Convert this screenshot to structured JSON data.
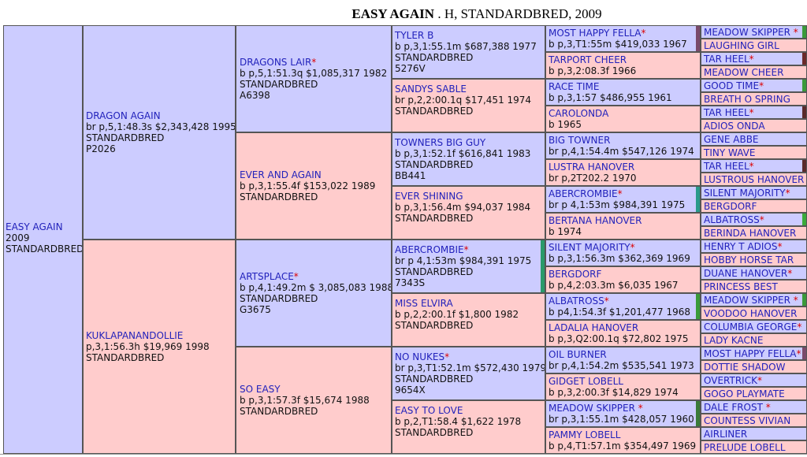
{
  "title": {
    "horse": "EASY AGAIN",
    "rest": " . H, STANDARDBRED, 2009"
  },
  "colors": {
    "male": "#ccccff",
    "female": "#ffcccc",
    "name": "#2222bb",
    "star": "#dd0000"
  },
  "gen1": {
    "name": "EASY AGAIN",
    "lines": [
      "2009",
      "STANDARDBRED"
    ]
  },
  "gen2": [
    {
      "name": "DRAGON AGAIN",
      "lines": [
        "br p,5,1:48.3s $2,343,428 1995",
        "STANDARDBRED",
        "P2026"
      ]
    },
    {
      "name": "KUKLAPANANDOLLIE",
      "lines": [
        "p,3,1:56.3h $19,969 1998",
        "STANDARDBRED"
      ]
    }
  ],
  "gen3": [
    {
      "name": "DRAGONS LAIR",
      "star": true,
      "lines": [
        "b p,5,1:51.3q $1,085,317 1982",
        "STANDARDBRED",
        "A6398"
      ]
    },
    {
      "name": "EVER AND AGAIN",
      "lines": [
        "b p,3,1:55.4f $153,022 1989",
        "STANDARDBRED"
      ]
    },
    {
      "name": "ARTSPLACE",
      "star": true,
      "lines": [
        "b p,4,1:49.2m $ 3,085,083 1988",
        "STANDARDBRED",
        "G3675"
      ]
    },
    {
      "name": "SO EASY",
      "lines": [
        "b p,3,1:57.3f $15,674 1988",
        "STANDARDBRED"
      ]
    }
  ],
  "gen4": [
    {
      "name": "TYLER B",
      "lines": [
        "b p,3,1:55.1m $687,388 1977",
        "STANDARDBRED",
        "5276V"
      ]
    },
    {
      "name": "SANDYS SABLE",
      "lines": [
        "br p,2,2:00.1q $17,451 1974",
        "STANDARDBRED"
      ]
    },
    {
      "name": "TOWNERS BIG GUY",
      "lines": [
        "b p,3,1:52.1f $616,841 1983",
        "STANDARDBRED",
        "BB441"
      ]
    },
    {
      "name": "EVER SHINING",
      "lines": [
        "b p,3,1:56.4m $94,037 1984",
        "STANDARDBRED"
      ]
    },
    {
      "name": "ABERCROMBIE",
      "star": true,
      "lines": [
        "br p 4,1:53m $984,391 1975",
        "STANDARDBRED",
        "7343S"
      ]
    },
    {
      "name": "MISS ELVIRA",
      "lines": [
        "b p,2,2:00.1f $1,800 1982",
        "STANDARDBRED"
      ]
    },
    {
      "name": "NO NUKES",
      "star": true,
      "lines": [
        "br p,3,T1:52.1m $572,430 1979",
        "STANDARDBRED",
        "9654X"
      ]
    },
    {
      "name": "EASY TO LOVE",
      "lines": [
        "b p,2,T1:58.4 $1,622 1978",
        "STANDARDBRED"
      ]
    }
  ],
  "gen5": [
    {
      "name": "MOST HAPPY FELLA",
      "star": true,
      "lines": [
        "b p,3,T1:55m $419,033 1967"
      ]
    },
    {
      "name": "TARPORT CHEER",
      "lines": [
        "b p,3,2:08.3f 1966"
      ]
    },
    {
      "name": "RACE TIME",
      "lines": [
        "b p,3,1:57 $486,955 1961"
      ]
    },
    {
      "name": "CAROLONDA",
      "lines": [
        "b 1965"
      ]
    },
    {
      "name": "BIG TOWNER",
      "lines": [
        "br p,4,1:54.4m $547,126 1974"
      ]
    },
    {
      "name": "LUSTRA HANOVER",
      "lines": [
        "br p,2T202.2 1970"
      ]
    },
    {
      "name": "ABERCROMBIE",
      "star": true,
      "lines": [
        "br p 4,1:53m $984,391 1975"
      ]
    },
    {
      "name": "BERTANA HANOVER",
      "lines": [
        "b 1974"
      ]
    },
    {
      "name": "SILENT MAJORITY",
      "star": true,
      "lines": [
        "b p,3,1:56.3m $362,369 1969"
      ]
    },
    {
      "name": "BERGDORF",
      "lines": [
        "b p,4,2:03.3m $6,035 1967"
      ]
    },
    {
      "name": "ALBATROSS",
      "star": true,
      "lines": [
        "b p4,1:54.3f $1,201,477 1968"
      ]
    },
    {
      "name": "LADALIA HANOVER",
      "lines": [
        "b p,3,Q2:00.1q $72,802 1975"
      ]
    },
    {
      "name": "OIL BURNER",
      "lines": [
        "br p,4,1:54.2m $535,541 1973"
      ]
    },
    {
      "name": "GIDGET LOBELL",
      "lines": [
        "b p,3,2:00.3f $14,829 1974"
      ]
    },
    {
      "name": "MEADOW SKIPPER ",
      "star": true,
      "lines": [
        "br p,3,1:55.1m $428,057 1960"
      ]
    },
    {
      "name": "PAMMY LOBELL",
      "lines": [
        "b p,4,T1:57.1m $354,497 1969"
      ]
    }
  ],
  "gen6": [
    {
      "name": "MEADOW SKIPPER ",
      "star": true
    },
    {
      "name": "LAUGHING GIRL"
    },
    {
      "name": "TAR HEEL",
      "star": true
    },
    {
      "name": "MEADOW CHEER"
    },
    {
      "name": "GOOD TIME",
      "star": true
    },
    {
      "name": "BREATH O SPRING"
    },
    {
      "name": "TAR HEEL",
      "star": true
    },
    {
      "name": "ADIOS ONDA"
    },
    {
      "name": "GENE ABBE"
    },
    {
      "name": "TINY WAVE"
    },
    {
      "name": "TAR HEEL",
      "star": true
    },
    {
      "name": "LUSTROUS HANOVER"
    },
    {
      "name": "SILENT MAJORITY",
      "star": true
    },
    {
      "name": "BERGDORF"
    },
    {
      "name": "ALBATROSS",
      "star": true
    },
    {
      "name": "BERINDA HANOVER"
    },
    {
      "name": "HENRY T ADIOS",
      "star": true
    },
    {
      "name": "HOBBY HORSE TAR"
    },
    {
      "name": "DUANE HANOVER",
      "star": true
    },
    {
      "name": "PRINCESS BEST"
    },
    {
      "name": "MEADOW SKIPPER ",
      "star": true
    },
    {
      "name": "VOODOO HANOVER"
    },
    {
      "name": "COLUMBIA GEORGE",
      "star": true
    },
    {
      "name": "LADY KACNE"
    },
    {
      "name": "MOST HAPPY FELLA",
      "star": true
    },
    {
      "name": "DOTTIE SHADOW"
    },
    {
      "name": "OVERTRICK",
      "star": true
    },
    {
      "name": "GOGO PLAYMATE"
    },
    {
      "name": "DALE FROST ",
      "star": true
    },
    {
      "name": "COUNTESS VIVIAN"
    },
    {
      "name": "AIRLINER"
    },
    {
      "name": "PRELUDE LOBELL"
    }
  ],
  "markers": {
    "gen5": {
      "0": "#7a4a6a",
      "6": "#2a9a8a",
      "10": "#3a9a3a",
      "14": "#3a7a3a"
    },
    "gen6": {
      "0": "#3a9a3a",
      "2": "#6a2a2a",
      "4": "#3a9a3a",
      "6": "#5a2a2a",
      "10": "#5a2a2a",
      "14": "#3aaa3a",
      "20": "#3a9a3a",
      "24": "#7a4a6a"
    },
    "gen4": {
      "4": "#2a9a6a"
    }
  }
}
